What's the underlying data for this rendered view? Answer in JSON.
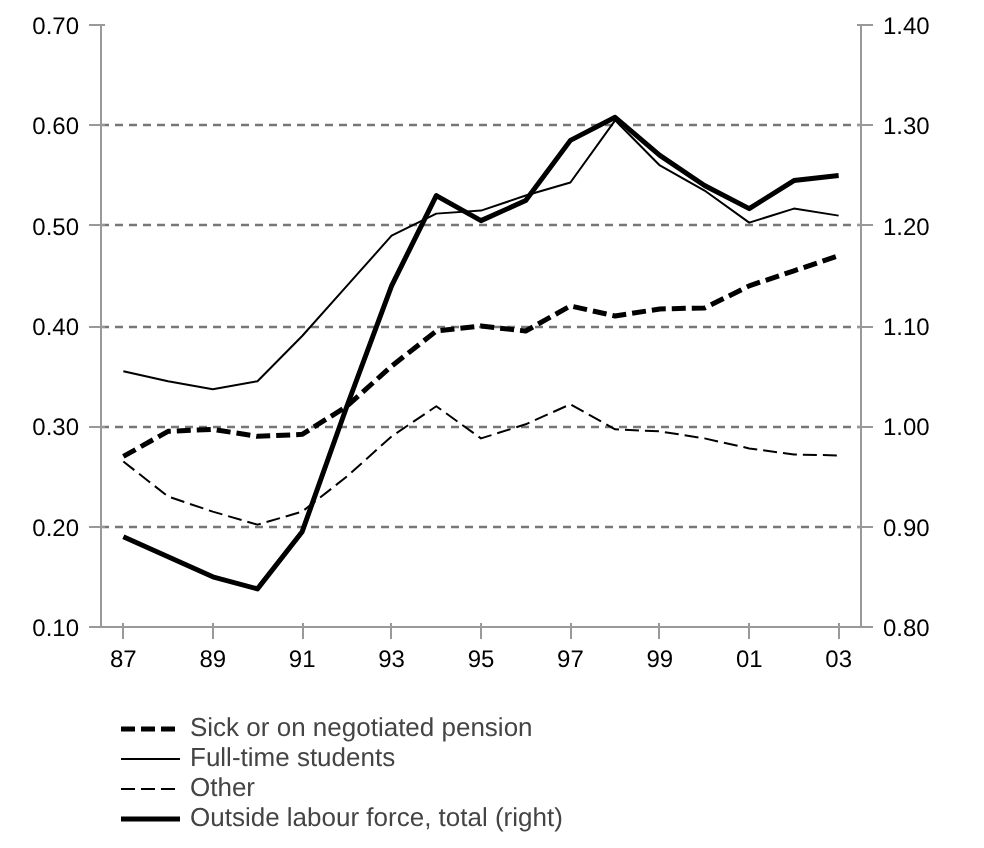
{
  "chart_data": {
    "type": "line",
    "x": [
      1987,
      1988,
      1989,
      1990,
      1991,
      1992,
      1993,
      1994,
      1995,
      1996,
      1997,
      1998,
      1999,
      2000,
      2001,
      2002,
      2003
    ],
    "series": [
      {
        "name": "Sick or on negotiated pension",
        "color": "#000000",
        "line_style": "dashed",
        "values": [
          0.27,
          0.295,
          0.297,
          0.29,
          0.292,
          0.32,
          0.36,
          0.395,
          0.4,
          0.395,
          0.42,
          0.41,
          0.417,
          0.418,
          0.44,
          0.455,
          0.47
        ]
      },
      {
        "name": "Full-time students",
        "color": "#000000",
        "line_style": "solid",
        "values": [
          0.355,
          0.345,
          0.337,
          0.345,
          0.39,
          0.44,
          0.49,
          0.512,
          0.515,
          0.53,
          0.543,
          0.605,
          0.56,
          0.535,
          0.503,
          0.517,
          0.51
        ]
      },
      {
        "name": "Other",
        "color": "#000000",
        "line_style": "dashed",
        "values": [
          0.265,
          0.23,
          0.215,
          0.202,
          0.215,
          0.25,
          0.29,
          0.32,
          0.288,
          0.302,
          0.322,
          0.297,
          0.295,
          0.288,
          0.278,
          0.272,
          0.271
        ]
      },
      {
        "name": "Outside labour force, total (right)",
        "color": "#000000",
        "line_style": "solid",
        "axis": "y2",
        "values": [
          0.89,
          0.87,
          0.85,
          0.838,
          0.895,
          1.02,
          1.14,
          1.23,
          1.205,
          1.225,
          1.285,
          1.308,
          1.27,
          1.24,
          1.217,
          1.245,
          1.25
        ]
      }
    ],
    "xlim": [
      1986.5,
      2003.5
    ],
    "xticks": [
      {
        "value": 1987,
        "label": "87"
      },
      {
        "value": 1989,
        "label": "89"
      },
      {
        "value": 1991,
        "label": "91"
      },
      {
        "value": 1993,
        "label": "93"
      },
      {
        "value": 1995,
        "label": "95"
      },
      {
        "value": 1997,
        "label": "97"
      },
      {
        "value": 1999,
        "label": "99"
      },
      {
        "value": 2001,
        "label": "01"
      },
      {
        "value": 2003,
        "label": "03"
      }
    ],
    "ylim": [
      0.1,
      0.7
    ],
    "yticks": [
      {
        "value": 0.1,
        "label": "0.10"
      },
      {
        "value": 0.2,
        "label": "0.20"
      },
      {
        "value": 0.3,
        "label": "0.30"
      },
      {
        "value": 0.4,
        "label": "0.40"
      },
      {
        "value": 0.5,
        "label": "0.50"
      },
      {
        "value": 0.6,
        "label": "0.60"
      },
      {
        "value": 0.7,
        "label": "0.70"
      }
    ],
    "y2lim": [
      0.8,
      1.4
    ],
    "y2ticks": [
      {
        "value": 0.8,
        "label": "0.80"
      },
      {
        "value": 0.9,
        "label": "0.90"
      },
      {
        "value": 1.0,
        "label": "1.00"
      },
      {
        "value": 1.1,
        "label": "1.10"
      },
      {
        "value": 1.2,
        "label": "1.20"
      },
      {
        "value": 1.3,
        "label": "1.30"
      },
      {
        "value": 1.4,
        "label": "1.40"
      }
    ],
    "grid": "y",
    "legend": "bottom",
    "marker": "none"
  }
}
